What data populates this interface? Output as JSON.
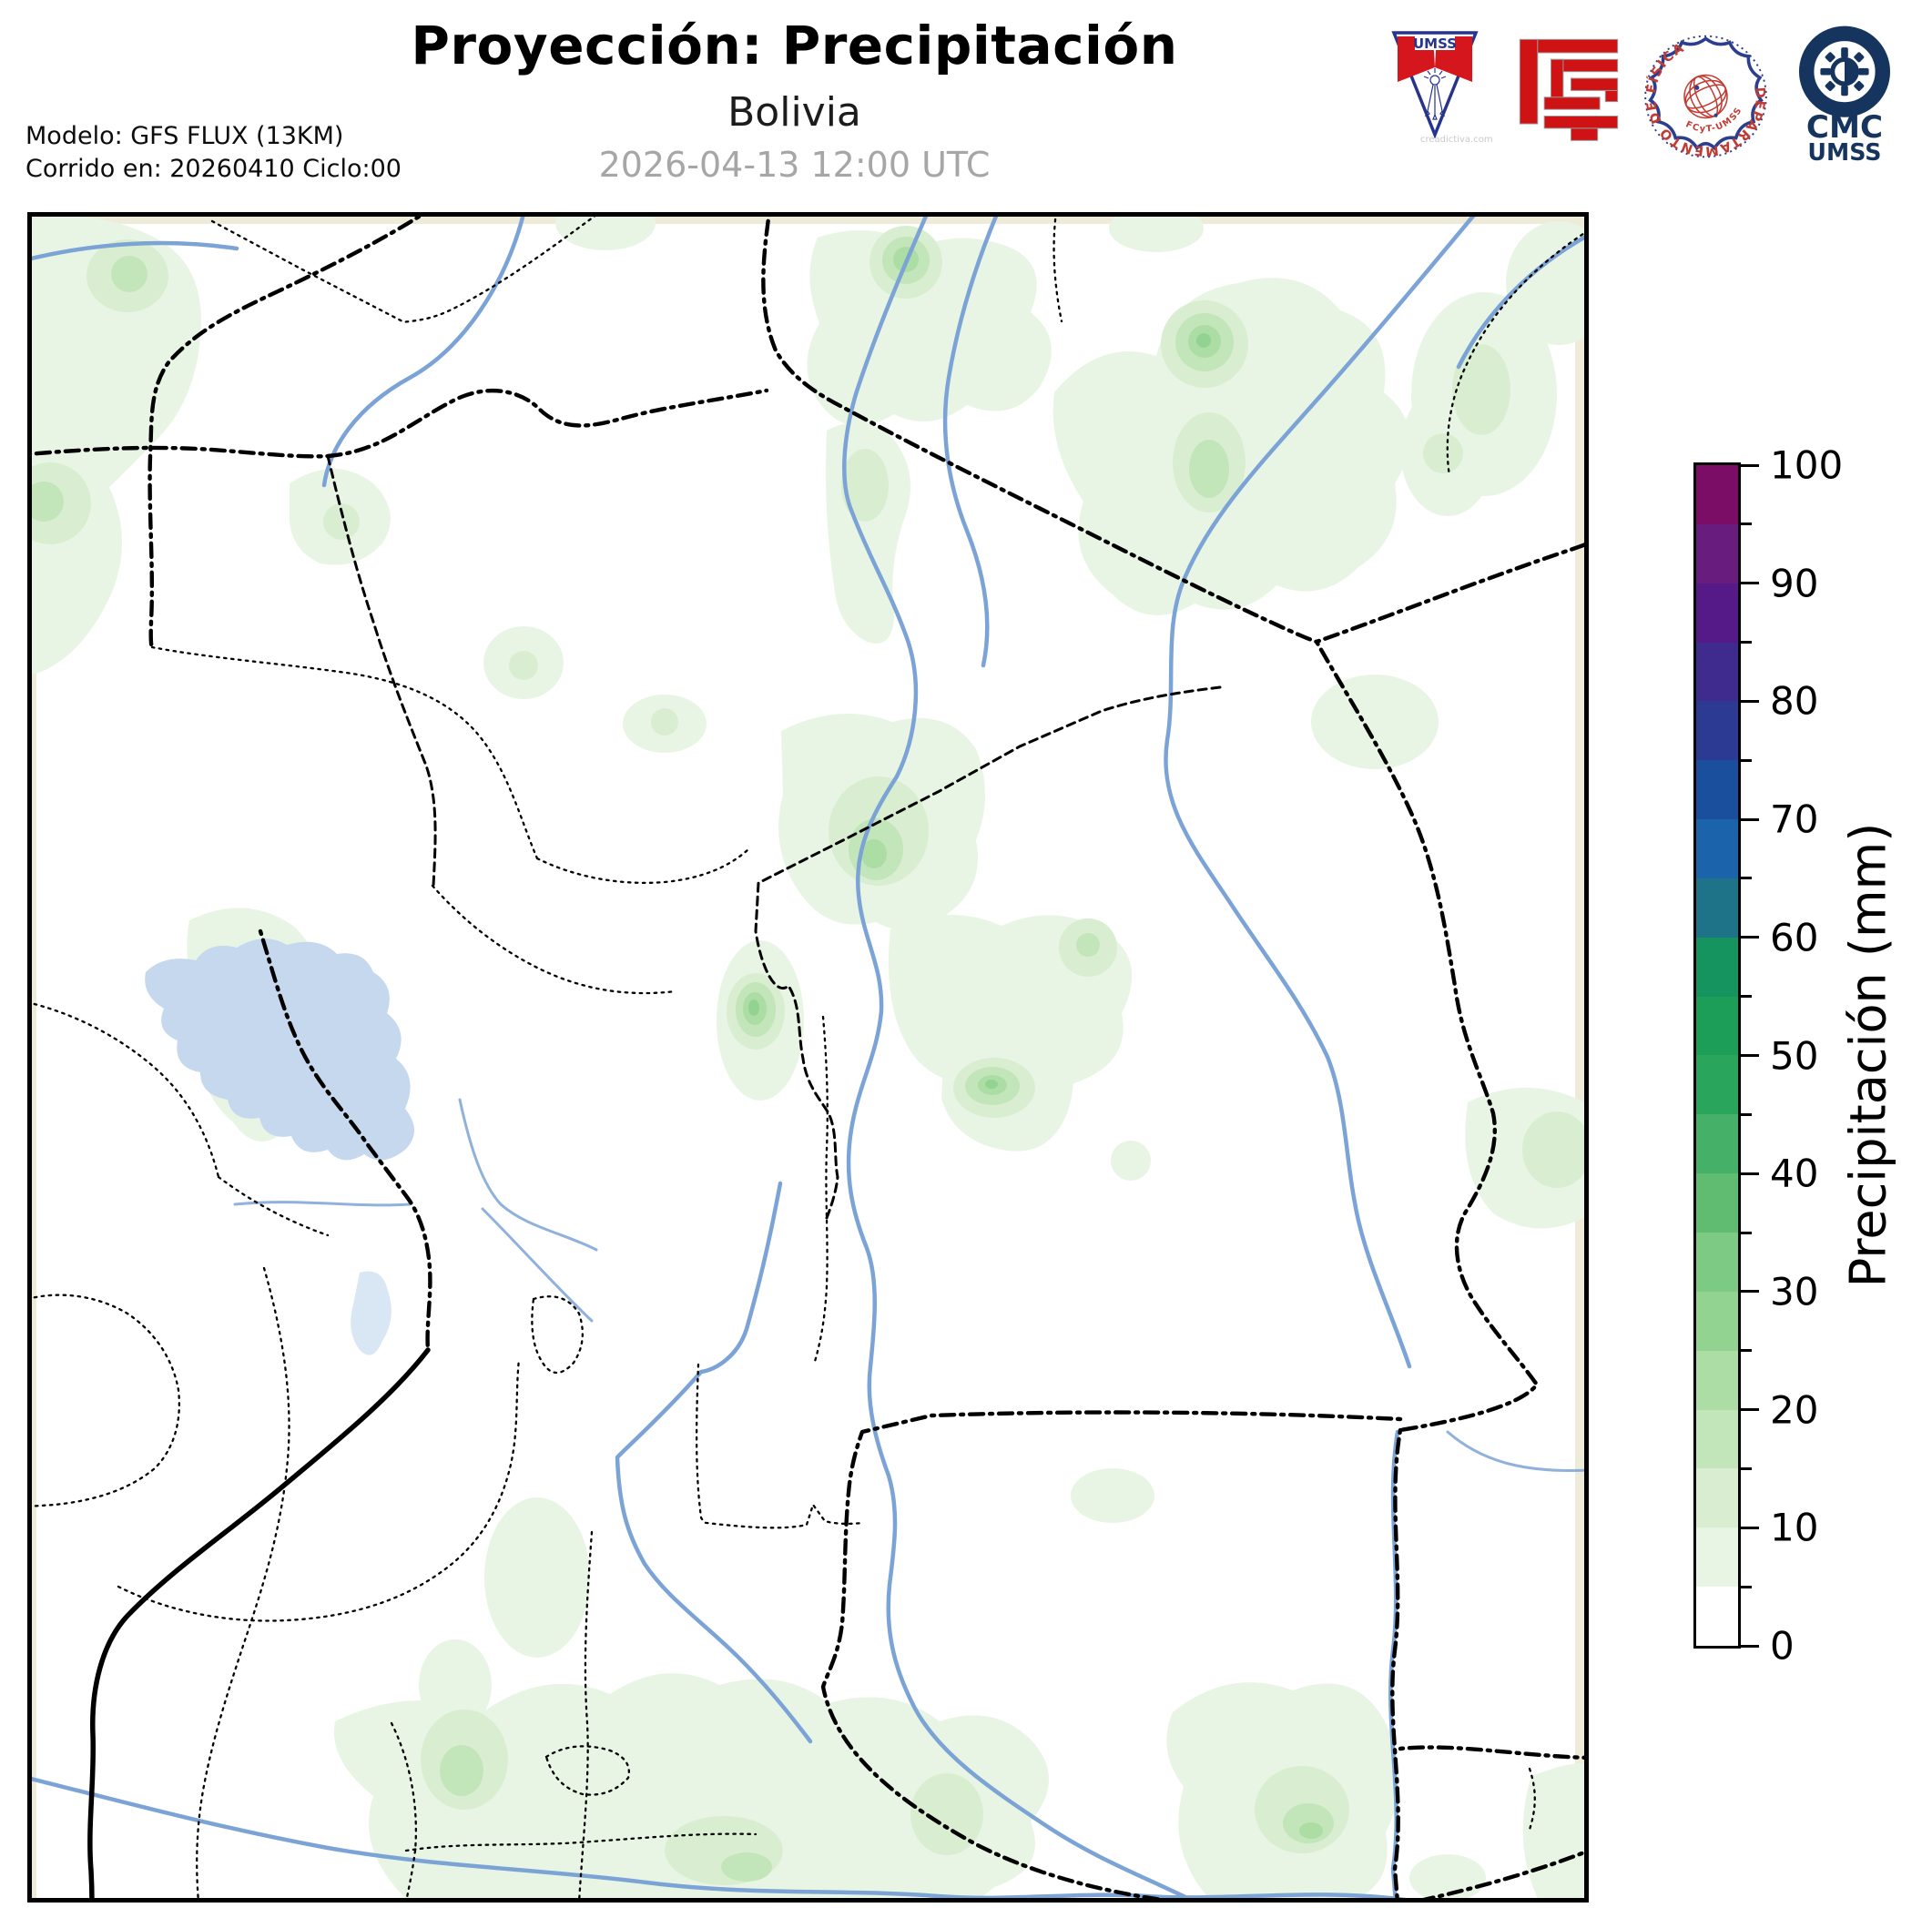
{
  "header": {
    "title": "Proyección: Precipitación",
    "subtitle": "Bolivia",
    "valid_datetime": "2026-04-13 12:00 UTC",
    "model_line1": "Modelo: GFS FLUX (13KM)",
    "model_line2": "Corrido en: 20260410 Ciclo:00"
  },
  "logos": {
    "umss": {
      "icon": "umss-pennant-crest-icon",
      "text": "UMSS",
      "watermark": "creadictiva.com",
      "blue": "#27348b",
      "red": "#d6161d"
    },
    "fcyt": {
      "icon": "fcyt-red-maze-icon",
      "red": "#cf1315"
    },
    "fisica": {
      "icon": "departamento-de-fisica-seal-icon",
      "ring_text": "DEPARTAMENTO DE FÍSICA",
      "bottom_text": "FCyT-UMSS",
      "blue": "#2c3f8f",
      "red": "#c23b33"
    },
    "cmc": {
      "icon": "cmc-sun-ring-icon",
      "line1": "CMC",
      "line2": "UMSS",
      "navy": "#16355e"
    }
  },
  "colorbar": {
    "label": "Precipitación (mm)",
    "unit": "mm",
    "min": 0,
    "max": 100,
    "segment_step": 5,
    "major_ticks": [
      0,
      10,
      20,
      30,
      40,
      50,
      60,
      70,
      80,
      90,
      100
    ],
    "minor_tick_step": 5,
    "colors_low_to_high": [
      "#ffffff",
      "#e9f5e4",
      "#d9eed1",
      "#c3e5ba",
      "#abdda4",
      "#93d391",
      "#7cca84",
      "#5fbc70",
      "#45b168",
      "#2aa55c",
      "#1d9e58",
      "#15945f",
      "#1e7389",
      "#1b64ab",
      "#1a4f9d",
      "#2c3a94",
      "#3f2b8e",
      "#561a88",
      "#681c7e",
      "#7b0d67"
    ]
  },
  "map": {
    "region": "Bolivia",
    "colors": {
      "background": "#ffffff",
      "land_edge": "#eeebd9",
      "river": "#7ba3d6",
      "lake": "#c5d8ee",
      "border": "#000000",
      "precip_fill_levels_mm": {
        "5": "#e9f5e4",
        "10": "#d9eed1",
        "15": "#c3e5ba",
        "20": "#abdda4",
        "25": "#93d391",
        "30": "#7cca84",
        "35": "#5fbc70"
      }
    },
    "shaded_precipitation_mm_range": [
      0,
      40
    ],
    "precipitation_maxima_mm_est": [
      {
        "area": "west-central highlands (NE of large lake)",
        "value_mm_est": 35
      },
      {
        "area": "north-east",
        "value_mm_est": 30
      },
      {
        "area": "center-south",
        "value_mm_est": 30
      },
      {
        "area": "east-central",
        "value_mm_est": 25
      },
      {
        "area": "south (bottom band)",
        "value_mm_est": 20
      },
      {
        "area": "north-west corner",
        "value_mm_est": 15
      }
    ]
  }
}
